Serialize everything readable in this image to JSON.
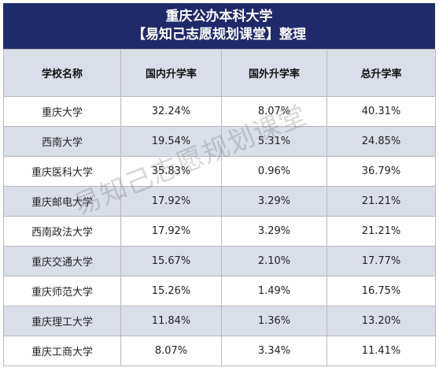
{
  "title": {
    "line1": "重庆公办本科大学",
    "line2": "【易知己志愿规划课堂】整理"
  },
  "table": {
    "headers": [
      "学校名称",
      "国内升学率",
      "国外升学率",
      "总升学率"
    ],
    "rows": [
      {
        "name": "重庆大学",
        "domestic": "32.24%",
        "abroad": "8.07%",
        "total": "40.31%"
      },
      {
        "name": "西南大学",
        "domestic": "19.54%",
        "abroad": "5.31%",
        "total": "24.85%"
      },
      {
        "name": "重庆医科大学",
        "domestic": "35.83%",
        "abroad": "0.96%",
        "total": "36.79%"
      },
      {
        "name": "重庆邮电大学",
        "domestic": "17.92%",
        "abroad": "3.29%",
        "total": "21.21%"
      },
      {
        "name": "西南政法大学",
        "domestic": "17.92%",
        "abroad": "3.29%",
        "total": "21.21%"
      },
      {
        "name": "重庆交通大学",
        "domestic": "15.67%",
        "abroad": "2.10%",
        "total": "17.77%"
      },
      {
        "name": "重庆师范大学",
        "domestic": "15.26%",
        "abroad": "1.49%",
        "total": "16.75%"
      },
      {
        "name": "重庆理工大学",
        "domestic": "11.84%",
        "abroad": "1.36%",
        "total": "13.20%"
      },
      {
        "name": "重庆工商大学",
        "domestic": "8.07%",
        "abroad": "3.34%",
        "total": "11.41%"
      }
    ]
  },
  "watermark": "易知己志愿规划课堂",
  "colors": {
    "title_bg": "#1f2a6b",
    "header_bg": "#d9dee9",
    "stripe_bg": "#d9dee9",
    "border": "#b9b9b9"
  }
}
